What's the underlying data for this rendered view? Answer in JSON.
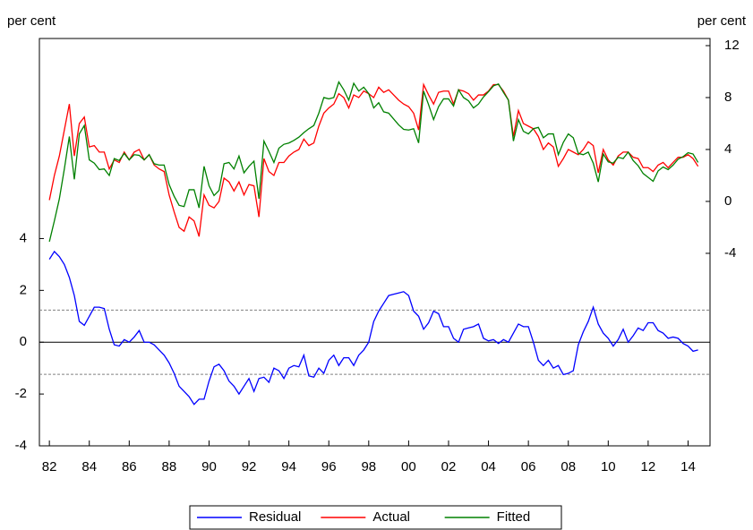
{
  "chart_data": {
    "type": "line",
    "y_label": "per cent",
    "y2_label": "per cent",
    "x": [
      1982,
      1982.25,
      1982.5,
      1982.75,
      1983,
      1983.25,
      1983.5,
      1983.75,
      1984,
      1984.25,
      1984.5,
      1984.75,
      1985,
      1985.25,
      1985.5,
      1985.75,
      1986,
      1986.25,
      1986.5,
      1986.75,
      1987,
      1987.25,
      1987.5,
      1987.75,
      1988,
      1988.25,
      1988.5,
      1988.75,
      1989,
      1989.25,
      1989.5,
      1989.75,
      1990,
      1990.25,
      1990.5,
      1990.75,
      1991,
      1991.25,
      1991.5,
      1991.75,
      1992,
      1992.25,
      1992.5,
      1992.75,
      1993,
      1993.25,
      1993.5,
      1993.75,
      1994,
      1994.25,
      1994.5,
      1994.75,
      1995,
      1995.25,
      1995.5,
      1995.75,
      1996,
      1996.25,
      1996.5,
      1996.75,
      1997,
      1997.25,
      1997.5,
      1997.75,
      1998,
      1998.25,
      1998.5,
      1998.75,
      1999,
      1999.25,
      1999.5,
      1999.75,
      2000,
      2000.25,
      2000.5,
      2000.75,
      2001,
      2001.25,
      2001.5,
      2001.75,
      2002,
      2002.25,
      2002.5,
      2002.75,
      2003,
      2003.25,
      2003.5,
      2003.75,
      2004,
      2004.25,
      2004.5,
      2004.75,
      2005,
      2005.25,
      2005.5,
      2005.75,
      2006,
      2006.25,
      2006.5,
      2006.75,
      2007,
      2007.25,
      2007.5,
      2007.75,
      2008,
      2008.25,
      2008.5,
      2008.75,
      2009,
      2009.25,
      2009.5,
      2009.75,
      2010,
      2010.25,
      2010.5,
      2010.75,
      2011,
      2011.25,
      2011.5,
      2011.75,
      2012,
      2012.25,
      2012.5,
      2012.75,
      2013,
      2013.25,
      2013.5,
      2013.75,
      2014,
      2014.25,
      2014.5
    ],
    "series": [
      {
        "name": "Residual",
        "color": "#0000ff",
        "axis": "y",
        "values": [
          3.2,
          3.5,
          3.3,
          3.0,
          2.5,
          1.8,
          0.8,
          0.65,
          1.0,
          1.35,
          1.35,
          1.3,
          0.5,
          -0.1,
          -0.15,
          0.1,
          0.0,
          0.2,
          0.45,
          0.0,
          0.0,
          -0.1,
          -0.3,
          -0.5,
          -0.8,
          -1.2,
          -1.7,
          -1.9,
          -2.1,
          -2.4,
          -2.2,
          -2.2,
          -1.5,
          -0.95,
          -0.85,
          -1.1,
          -1.5,
          -1.7,
          -2.0,
          -1.7,
          -1.4,
          -1.9,
          -1.4,
          -1.35,
          -1.55,
          -1.0,
          -1.1,
          -1.4,
          -1.0,
          -0.9,
          -0.95,
          -0.5,
          -1.3,
          -1.35,
          -1.0,
          -1.2,
          -0.7,
          -0.5,
          -0.9,
          -0.6,
          -0.6,
          -0.9,
          -0.5,
          -0.3,
          0.0,
          0.8,
          1.2,
          1.5,
          1.8,
          1.85,
          1.9,
          1.95,
          1.8,
          1.2,
          1.0,
          0.5,
          0.75,
          1.2,
          1.1,
          0.6,
          0.6,
          0.15,
          0.0,
          0.5,
          0.55,
          0.6,
          0.7,
          0.15,
          0.05,
          0.1,
          -0.05,
          0.1,
          0.0,
          0.35,
          0.7,
          0.6,
          0.6,
          0.0,
          -0.7,
          -0.9,
          -0.7,
          -1.0,
          -0.9,
          -1.25,
          -1.2,
          -1.1,
          -0.1,
          0.4,
          0.8,
          1.35,
          0.7,
          0.35,
          0.15,
          -0.15,
          0.1,
          0.5,
          0.0,
          0.25,
          0.55,
          0.45,
          0.75,
          0.75,
          0.45,
          0.35,
          0.15,
          0.2,
          0.15,
          -0.05,
          -0.15,
          -0.35,
          -0.3
        ]
      },
      {
        "name": "Actual",
        "color": "#ff0000",
        "axis": "y2",
        "values": [
          0.1,
          2.0,
          3.5,
          5.5,
          7.5,
          3.5,
          6.0,
          6.5,
          4.2,
          4.3,
          3.8,
          3.8,
          2.5,
          3.2,
          3.0,
          3.8,
          3.2,
          3.8,
          4.0,
          3.2,
          3.6,
          2.8,
          2.5,
          2.3,
          0.5,
          -0.8,
          -2.0,
          -2.3,
          -1.2,
          -1.5,
          -2.7,
          0.5,
          -0.3,
          -0.5,
          0.0,
          1.8,
          1.5,
          0.8,
          1.5,
          0.5,
          1.3,
          1.2,
          -1.2,
          3.3,
          2.3,
          2.0,
          3.0,
          3.0,
          3.5,
          3.8,
          4.0,
          4.8,
          4.3,
          4.5,
          5.8,
          6.8,
          7.2,
          7.5,
          8.3,
          8.0,
          7.2,
          8.2,
          8.0,
          8.5,
          8.3,
          8.0,
          8.8,
          8.4,
          8.6,
          8.2,
          7.8,
          7.5,
          7.3,
          6.8,
          5.5,
          9.0,
          8.2,
          7.5,
          8.4,
          8.5,
          8.5,
          7.5,
          8.6,
          8.5,
          8.3,
          7.8,
          8.2,
          8.2,
          8.5,
          9.0,
          9.0,
          8.5,
          7.8,
          5.0,
          7.0,
          6.0,
          5.8,
          5.6,
          5.0,
          4.0,
          4.5,
          4.2,
          2.7,
          3.3,
          4.0,
          3.8,
          3.6,
          4.0,
          4.6,
          4.3,
          2.2,
          4.0,
          3.2,
          2.8,
          3.5,
          3.8,
          3.8,
          3.4,
          3.3,
          2.6,
          2.6,
          2.3,
          2.8,
          3.0,
          2.6,
          3.0,
          3.4,
          3.4,
          3.6,
          3.3,
          2.7
        ]
      },
      {
        "name": "Fitted",
        "color": "#008000",
        "axis": "y2",
        "values": [
          -3.1,
          -1.5,
          0.2,
          2.5,
          5.0,
          1.7,
          5.2,
          5.85,
          3.2,
          2.95,
          2.45,
          2.5,
          2.0,
          3.3,
          3.15,
          3.7,
          3.2,
          3.6,
          3.55,
          3.2,
          3.6,
          2.9,
          2.8,
          2.8,
          1.3,
          0.4,
          -0.3,
          -0.4,
          0.9,
          0.9,
          -0.5,
          2.7,
          1.2,
          0.45,
          0.85,
          2.9,
          3.0,
          2.5,
          3.5,
          2.2,
          2.7,
          3.1,
          0.2,
          4.65,
          3.85,
          3.0,
          4.1,
          4.4,
          4.5,
          4.7,
          4.95,
          5.3,
          5.6,
          5.85,
          6.8,
          8.0,
          7.9,
          8.0,
          9.2,
          8.6,
          7.8,
          9.1,
          8.5,
          8.8,
          8.3,
          7.2,
          7.6,
          6.9,
          6.8,
          6.35,
          5.9,
          5.55,
          5.5,
          5.6,
          4.5,
          8.5,
          7.45,
          6.3,
          7.3,
          7.9,
          7.9,
          7.35,
          8.6,
          8.0,
          7.75,
          7.2,
          7.5,
          8.05,
          8.45,
          8.9,
          9.05,
          8.4,
          7.8,
          4.65,
          6.3,
          5.4,
          5.2,
          5.6,
          5.7,
          4.9,
          5.2,
          5.2,
          3.6,
          4.55,
          5.2,
          4.9,
          3.7,
          3.6,
          3.8,
          2.95,
          1.5,
          3.65,
          3.05,
          2.95,
          3.4,
          3.3,
          3.8,
          3.15,
          2.75,
          2.15,
          1.85,
          1.55,
          2.35,
          2.65,
          2.45,
          2.8,
          3.25,
          3.45,
          3.75,
          3.65,
          3.0
        ]
      }
    ],
    "xlim": [
      1981.5,
      2015.1
    ],
    "xticks": [
      {
        "value": 1982,
        "label": "82"
      },
      {
        "value": 1984,
        "label": "84"
      },
      {
        "value": 1986,
        "label": "86"
      },
      {
        "value": 1988,
        "label": "88"
      },
      {
        "value": 1990,
        "label": "90"
      },
      {
        "value": 1992,
        "label": "92"
      },
      {
        "value": 1994,
        "label": "94"
      },
      {
        "value": 1996,
        "label": "96"
      },
      {
        "value": 1998,
        "label": "98"
      },
      {
        "value": 2000,
        "label": "00"
      },
      {
        "value": 2002,
        "label": "02"
      },
      {
        "value": 2004,
        "label": "04"
      },
      {
        "value": 2006,
        "label": "06"
      },
      {
        "value": 2008,
        "label": "08"
      },
      {
        "value": 2010,
        "label": "10"
      },
      {
        "value": 2012,
        "label": "12"
      },
      {
        "value": 2014,
        "label": "14"
      }
    ],
    "ylim": [
      -4,
      11.72
    ],
    "yticks": [
      -4,
      -2,
      0,
      2,
      4
    ],
    "y2lim": [
      -18.83,
      12.55
    ],
    "y2ticks": [
      -4,
      0,
      4,
      8,
      12
    ],
    "zero_line": true,
    "std_bands": [
      1.24,
      -1.24
    ],
    "legend": "bottom"
  }
}
